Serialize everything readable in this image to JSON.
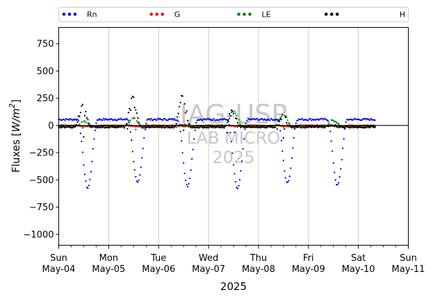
{
  "chart_data": {
    "type": "scatter",
    "xlabel": "2025",
    "ylabel_prefix": "Fluxes [",
    "ylabel_unit": "W/m",
    "ylabel_exp": "2",
    "ylabel_suffix": "]",
    "ylim": [
      -1100,
      900
    ],
    "yticks": [
      750,
      500,
      250,
      0,
      -250,
      -500,
      -750,
      -1000
    ],
    "ytick_labels": [
      "750",
      "500",
      "250",
      "0",
      "−250",
      "−500",
      "−750",
      "−1000"
    ],
    "xlim_days": [
      "2025-05-04",
      "2025-05-11"
    ],
    "xticks": [
      {
        "day": "Sun",
        "date": "May-04"
      },
      {
        "day": "Mon",
        "date": "May-05"
      },
      {
        "day": "Tue",
        "date": "May-06"
      },
      {
        "day": "Wed",
        "date": "May-07"
      },
      {
        "day": "Thu",
        "date": "May-08"
      },
      {
        "day": "Fri",
        "date": "May-09"
      },
      {
        "day": "Sat",
        "date": "May-10"
      },
      {
        "day": "Sun",
        "date": "May-11"
      }
    ],
    "grid": "vertical",
    "zero_line": true,
    "legend_placement": "top-outside",
    "watermark": [
      "IAG-USP",
      "LAB MICRO",
      "2025"
    ],
    "data_end_day": 6.35,
    "series": [
      {
        "name": "Rn",
        "color": "#0000ff",
        "night_level": 55,
        "daily_min": [
          -575,
          -530,
          -555,
          -580,
          -530,
          -550,
          -30
        ],
        "note_values": "daytime negative minimum of net radiation per day (W/m2)"
      },
      {
        "name": "G",
        "color": "#ff0000",
        "daily_min": [
          -10,
          -10,
          -10,
          -10,
          -10,
          -10,
          -5
        ],
        "daily_max": [
          5,
          5,
          5,
          5,
          5,
          5,
          5
        ]
      },
      {
        "name": "LE",
        "color": "#008000",
        "daily_max": [
          60,
          90,
          20,
          160,
          140,
          70,
          10
        ],
        "daily_min": [
          -30,
          -110,
          -25,
          -50,
          -30,
          -20,
          -10
        ]
      },
      {
        "name": "H",
        "color": "#000000",
        "daily_max": [
          220,
          300,
          320,
          170,
          120,
          20,
          10
        ],
        "daily_min": [
          -30,
          -20,
          -20,
          -20,
          -30,
          -30,
          -10
        ]
      }
    ]
  }
}
